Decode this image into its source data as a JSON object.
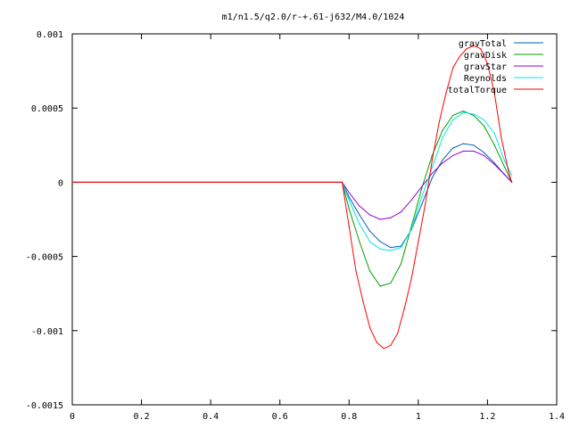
{
  "chart_data": {
    "type": "line",
    "title": "m1/n1.5/q2.0/r-+.61-j632/M4.0/1024",
    "xlabel": "",
    "ylabel": "",
    "xlim": [
      0,
      1.4
    ],
    "ylim": [
      -0.0015,
      0.001
    ],
    "x_ticks": [
      "0",
      "0.2",
      "0.4",
      "0.6",
      "0.8",
      "1",
      "1.2",
      "1.4"
    ],
    "y_ticks": [
      "0.001",
      "0.0005",
      "0",
      "-0.0005",
      "-0.001",
      "-0.0015"
    ],
    "grid": false,
    "legend_position": "top-right",
    "series": [
      {
        "name": "gravTotal",
        "color": "#0060ad",
        "x": [
          0,
          0.78,
          0.8,
          0.83,
          0.86,
          0.89,
          0.92,
          0.95,
          0.98,
          1.01,
          1.04,
          1.07,
          1.1,
          1.13,
          1.16,
          1.19,
          1.22,
          1.25,
          1.27
        ],
        "y": [
          0,
          0,
          -0.0001,
          -0.00022,
          -0.00033,
          -0.0004,
          -0.00044,
          -0.00043,
          -0.00032,
          -0.00015,
          3e-05,
          0.00015,
          0.00023,
          0.00026,
          0.00025,
          0.0002,
          0.00013,
          5e-05,
          0
        ]
      },
      {
        "name": "gravDisk",
        "color": "#009e00",
        "x": [
          0,
          0.78,
          0.8,
          0.83,
          0.86,
          0.89,
          0.92,
          0.95,
          0.98,
          1.01,
          1.04,
          1.07,
          1.1,
          1.13,
          1.16,
          1.19,
          1.22,
          1.25,
          1.27
        ],
        "y": [
          0,
          0,
          -0.00018,
          -0.0004,
          -0.0006,
          -0.0007,
          -0.00068,
          -0.00055,
          -0.0003,
          -4e-05,
          0.00018,
          0.00035,
          0.00045,
          0.00048,
          0.00045,
          0.00038,
          0.00025,
          0.0001,
          0
        ]
      },
      {
        "name": "gravStar",
        "color": "#9400d3",
        "x": [
          0,
          0.78,
          0.8,
          0.83,
          0.86,
          0.89,
          0.92,
          0.95,
          0.98,
          1.01,
          1.04,
          1.07,
          1.1,
          1.13,
          1.16,
          1.19,
          1.22,
          1.25,
          1.27
        ],
        "y": [
          0,
          0,
          -7e-05,
          -0.00016,
          -0.00022,
          -0.00025,
          -0.00024,
          -0.0002,
          -0.00012,
          -3e-05,
          6e-05,
          0.00013,
          0.00018,
          0.00021,
          0.00021,
          0.00018,
          0.00012,
          5e-05,
          0
        ]
      },
      {
        "name": "Reynolds",
        "color": "#00e5ee",
        "x": [
          0,
          0.78,
          0.8,
          0.83,
          0.86,
          0.89,
          0.92,
          0.95,
          0.98,
          1.01,
          1.04,
          1.07,
          1.1,
          1.13,
          1.16,
          1.19,
          1.22,
          1.25,
          1.27
        ],
        "y": [
          0,
          0,
          -0.00012,
          -0.00028,
          -0.0004,
          -0.00045,
          -0.00046,
          -0.00044,
          -0.00032,
          -0.0001,
          0.0001,
          0.0003,
          0.00042,
          0.00047,
          0.00046,
          0.00042,
          0.00033,
          0.00014,
          5e-05
        ]
      },
      {
        "name": "totalTorque",
        "color": "#ff0000",
        "x": [
          0,
          0.78,
          0.8,
          0.82,
          0.84,
          0.86,
          0.88,
          0.9,
          0.92,
          0.94,
          0.96,
          0.98,
          1.0,
          1.02,
          1.04,
          1.06,
          1.08,
          1.1,
          1.12,
          1.14,
          1.16,
          1.18,
          1.2,
          1.22,
          1.24,
          1.26,
          1.27
        ],
        "y": [
          0,
          0,
          -0.0003,
          -0.0006,
          -0.0008,
          -0.00098,
          -0.00108,
          -0.00112,
          -0.0011,
          -0.00102,
          -0.00085,
          -0.00065,
          -0.0004,
          -0.00015,
          0.00015,
          0.0004,
          0.0006,
          0.00077,
          0.00085,
          0.0009,
          0.00092,
          0.0009,
          0.0008,
          0.0006,
          0.0003,
          8e-05,
          0
        ]
      }
    ]
  }
}
